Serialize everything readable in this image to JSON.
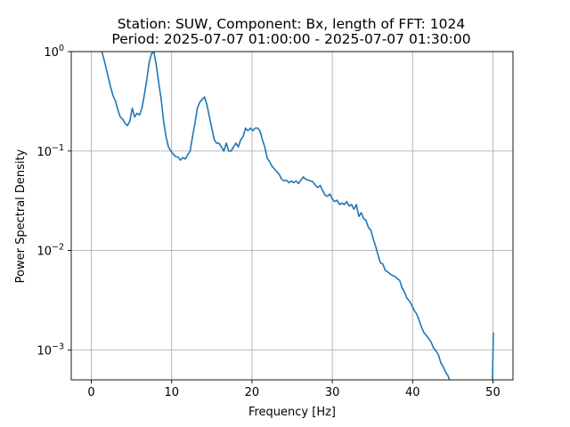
{
  "chart_data": {
    "type": "line",
    "title_line1": "Station: SUW, Component: Bx, length of FFT: 1024",
    "title_line2": "Period: 2025-07-07 01:00:00 - 2025-07-07 01:30:00",
    "xlabel": "Frequency [Hz]",
    "ylabel": "Power Spectral Density",
    "xlim": [
      -2.5,
      52.5
    ],
    "ylim": [
      0.0005,
      1
    ],
    "yscale": "log",
    "grid": true,
    "xticks": [
      {
        "value": 0,
        "label": "0"
      },
      {
        "value": 10,
        "label": "10"
      },
      {
        "value": 20,
        "label": "20"
      },
      {
        "value": 30,
        "label": "30"
      },
      {
        "value": 40,
        "label": "40"
      },
      {
        "value": 50,
        "label": "50"
      }
    ],
    "yticks": [
      {
        "value": 0.001,
        "base": "10",
        "exp": "−3"
      },
      {
        "value": 0.01,
        "base": "10",
        "exp": "−2"
      },
      {
        "value": 0.1,
        "base": "10",
        "exp": "−1"
      },
      {
        "value": 1,
        "base": "10",
        "exp": "0"
      }
    ],
    "series": [
      {
        "color": "#1f77b4",
        "x": [
          1.3,
          1.6,
          2.0,
          2.4,
          2.7,
          3.0,
          3.3,
          3.6,
          3.9,
          4.2,
          4.5,
          4.8,
          5.1,
          5.4,
          5.7,
          6.0,
          6.3,
          6.6,
          6.9,
          7.2,
          7.5,
          7.8,
          8.1,
          8.4,
          8.7,
          9.0,
          9.3,
          9.6,
          9.9,
          10.2,
          10.5,
          10.8,
          11.1,
          11.4,
          11.7,
          12.0,
          12.3,
          12.6,
          12.9,
          13.2,
          13.5,
          13.8,
          14.1,
          14.4,
          14.7,
          15.0,
          15.3,
          15.6,
          15.9,
          16.2,
          16.5,
          16.8,
          17.1,
          17.4,
          17.7,
          18.0,
          18.3,
          18.6,
          18.9,
          19.2,
          19.5,
          19.8,
          20.1,
          20.4,
          20.7,
          21.0,
          21.3,
          21.6,
          21.9,
          22.2,
          22.5,
          22.8,
          23.1,
          23.4,
          23.7,
          24.0,
          24.3,
          24.6,
          24.9,
          25.2,
          25.5,
          25.8,
          26.1,
          26.4,
          26.7,
          27.0,
          27.3,
          27.6,
          27.9,
          28.2,
          28.5,
          28.8,
          29.1,
          29.4,
          29.7,
          30.0,
          30.3,
          30.6,
          30.9,
          31.2,
          31.5,
          31.8,
          32.1,
          32.4,
          32.7,
          33.0,
          33.3,
          33.6,
          33.9,
          34.2,
          34.5,
          34.8,
          35.1,
          35.4,
          35.7,
          36.0,
          36.3,
          36.6,
          36.9,
          37.2,
          37.5,
          37.8,
          38.1,
          38.4,
          38.7,
          39.0,
          39.3,
          39.6,
          39.9,
          40.2,
          40.5,
          40.8,
          41.1,
          41.4,
          41.7,
          42.0,
          42.3,
          42.6,
          42.9,
          43.2,
          43.5,
          43.8,
          44.1,
          44.4,
          44.6,
          49.9,
          49.95,
          50.0,
          50.05
        ],
        "values": [
          1.0,
          0.82,
          0.6,
          0.44,
          0.36,
          0.32,
          0.26,
          0.22,
          0.21,
          0.19,
          0.18,
          0.2,
          0.27,
          0.22,
          0.24,
          0.23,
          0.27,
          0.37,
          0.52,
          0.78,
          0.96,
          0.98,
          0.72,
          0.48,
          0.33,
          0.2,
          0.14,
          0.11,
          0.1,
          0.093,
          0.088,
          0.087,
          0.081,
          0.086,
          0.083,
          0.092,
          0.1,
          0.14,
          0.19,
          0.27,
          0.31,
          0.33,
          0.35,
          0.29,
          0.22,
          0.17,
          0.13,
          0.12,
          0.12,
          0.11,
          0.1,
          0.12,
          0.1,
          0.1,
          0.11,
          0.12,
          0.11,
          0.13,
          0.14,
          0.17,
          0.16,
          0.17,
          0.16,
          0.17,
          0.17,
          0.16,
          0.13,
          0.11,
          0.085,
          0.078,
          0.07,
          0.066,
          0.062,
          0.058,
          0.052,
          0.05,
          0.051,
          0.048,
          0.05,
          0.048,
          0.05,
          0.047,
          0.051,
          0.055,
          0.052,
          0.051,
          0.05,
          0.049,
          0.045,
          0.043,
          0.045,
          0.04,
          0.036,
          0.035,
          0.037,
          0.033,
          0.031,
          0.032,
          0.029,
          0.03,
          0.029,
          0.031,
          0.028,
          0.029,
          0.026,
          0.029,
          0.022,
          0.024,
          0.021,
          0.02,
          0.017,
          0.016,
          0.013,
          0.011,
          0.009,
          0.0075,
          0.0073,
          0.0063,
          0.0061,
          0.0058,
          0.0056,
          0.0055,
          0.0052,
          0.005,
          0.0042,
          0.0038,
          0.0033,
          0.0031,
          0.0028,
          0.0025,
          0.0023,
          0.002,
          0.0017,
          0.0015,
          0.0014,
          0.0013,
          0.0012,
          0.00105,
          0.00098,
          0.0009,
          0.00075,
          0.00068,
          0.0006,
          0.00055,
          0.0005,
          0.0005,
          0.0005,
          0.0009,
          0.0015
        ]
      }
    ]
  }
}
